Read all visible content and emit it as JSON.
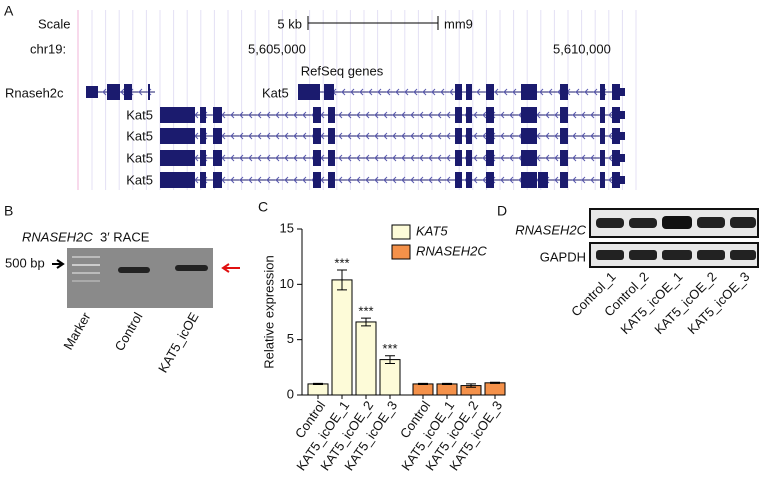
{
  "panels": {
    "a": {
      "letter": "A",
      "scale": "Scale",
      "scale_size": "5 kb",
      "assembly": "mm9",
      "chrom": "chr19:",
      "pos1": "5,605,000",
      "pos2": "5,610,000",
      "track": "RefSeq genes",
      "gene1": "Rnaseh2c",
      "gene2": "Kat5",
      "isoforms": [
        "Kat5",
        "Kat5",
        "Kat5",
        "Kat5"
      ]
    },
    "b": {
      "letter": "B",
      "gene": "RNASEH2C",
      "title_suffix": "3′ RACE",
      "marker_size": "500 bp",
      "lanes": [
        "Marker",
        "Control",
        "KAT5_icOE"
      ]
    },
    "c": {
      "letter": "C"
    },
    "d": {
      "letter": "D",
      "rows": [
        "RNASEH2C",
        "GAPDH"
      ],
      "lanes": [
        "Control_1",
        "Control_2",
        "KAT5_icOE_1",
        "KAT5_icOE_2",
        "KAT5_icOE_3"
      ]
    }
  },
  "chart_data": {
    "type": "bar",
    "y_label": "Relative expression",
    "categories": [
      "Control",
      "KAT5_icOE_1",
      "KAT5_icOE_2",
      "KAT5_icOE_3",
      "Control",
      "KAT5_icOE_1",
      "KAT5_icOE_2",
      "KAT5_icOE_3"
    ],
    "series": [
      {
        "name": "KAT5",
        "color": "#fdfbd8",
        "values": [
          1.0,
          10.4,
          6.6,
          3.2,
          null,
          null,
          null,
          null
        ],
        "errors": [
          0.05,
          0.9,
          0.35,
          0.35,
          null,
          null,
          null,
          null
        ],
        "annotations": [
          null,
          "***",
          "***",
          "***",
          null,
          null,
          null,
          null
        ]
      },
      {
        "name": "RNASEH2C",
        "color": "#f4914a",
        "values": [
          null,
          null,
          null,
          null,
          1.0,
          1.0,
          0.85,
          1.1
        ],
        "errors": [
          null,
          null,
          null,
          null,
          0.05,
          0.05,
          0.15,
          0.05
        ]
      }
    ],
    "ylim": [
      0,
      15
    ],
    "yticks": [
      0,
      5,
      10,
      15
    ]
  }
}
